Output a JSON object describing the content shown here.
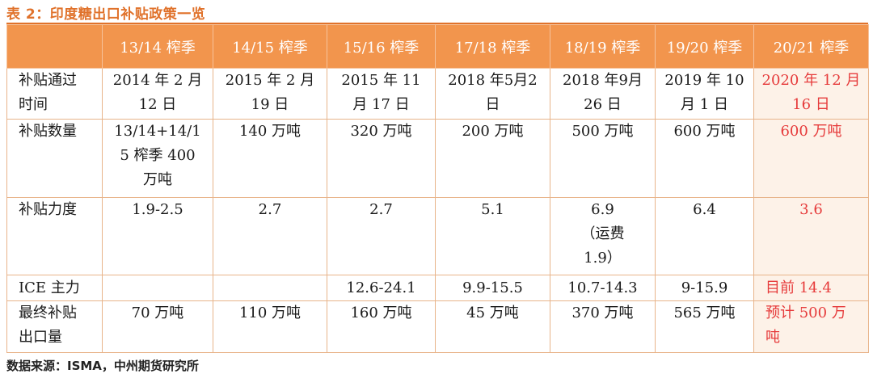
{
  "title": "表 2：印度糖出口补贴政策一览",
  "source": "数据来源：ISMA，中州期货研究所",
  "columns": [
    "",
    "13/14 榨季",
    "14/15 榨季",
    "15/16 榨季",
    "17/18 榨季",
    "18/19 榨季",
    "19/20 榨季",
    "20/21 榨季"
  ],
  "rows": [
    {
      "label": [
        "补贴通过",
        "时间"
      ],
      "cells": [
        [
          "2014 年 2 月",
          "12 日"
        ],
        [
          "2015 年 2 月",
          "19 日"
        ],
        [
          "2015 年 11",
          "月 17 日"
        ],
        [
          "2018 年5月2",
          "日"
        ],
        [
          "2018 年9月",
          "26 日"
        ],
        [
          "2019 年 10",
          "月 1 日"
        ],
        [
          "2020 年 12 月",
          "16 日"
        ]
      ]
    },
    {
      "label": [
        "补贴数量"
      ],
      "cells": [
        [
          "13/14+14/1",
          "5 榨季 400",
          "万吨"
        ],
        [
          "140 万吨"
        ],
        [
          "320 万吨"
        ],
        [
          "200 万吨"
        ],
        [
          "500 万吨"
        ],
        [
          "600 万吨"
        ],
        [
          "600 万吨"
        ]
      ]
    },
    {
      "label": [
        "补贴力度"
      ],
      "cells": [
        [
          "1.9-2.5"
        ],
        [
          "2.7"
        ],
        [
          "2.7"
        ],
        [
          "5.1"
        ],
        [
          "6.9",
          "（运费",
          "1.9）"
        ],
        [
          "6.4"
        ],
        [
          "3.6"
        ]
      ]
    },
    {
      "label": [
        "ICE 主力"
      ],
      "cells": [
        [
          ""
        ],
        [
          ""
        ],
        [
          "12.6-24.1"
        ],
        [
          "9.9-15.5"
        ],
        [
          "10.7-14.3"
        ],
        [
          "9-15.9"
        ],
        [
          "目前 14.4"
        ]
      ]
    },
    {
      "label": [
        "最终补贴",
        "出口量"
      ],
      "cells": [
        [
          "70 万吨"
        ],
        [
          "110 万吨"
        ],
        [
          "160 万吨"
        ],
        [
          "45 万吨"
        ],
        [
          "370 万吨"
        ],
        [
          "565 万吨"
        ],
        [
          "预计 500 万",
          "吨"
        ]
      ]
    }
  ],
  "colors": {
    "header_bg": "#F2954D",
    "title": "#E0722B",
    "highlight_text": "#E63B3B",
    "last_col_bg": "#FDF2E8"
  }
}
